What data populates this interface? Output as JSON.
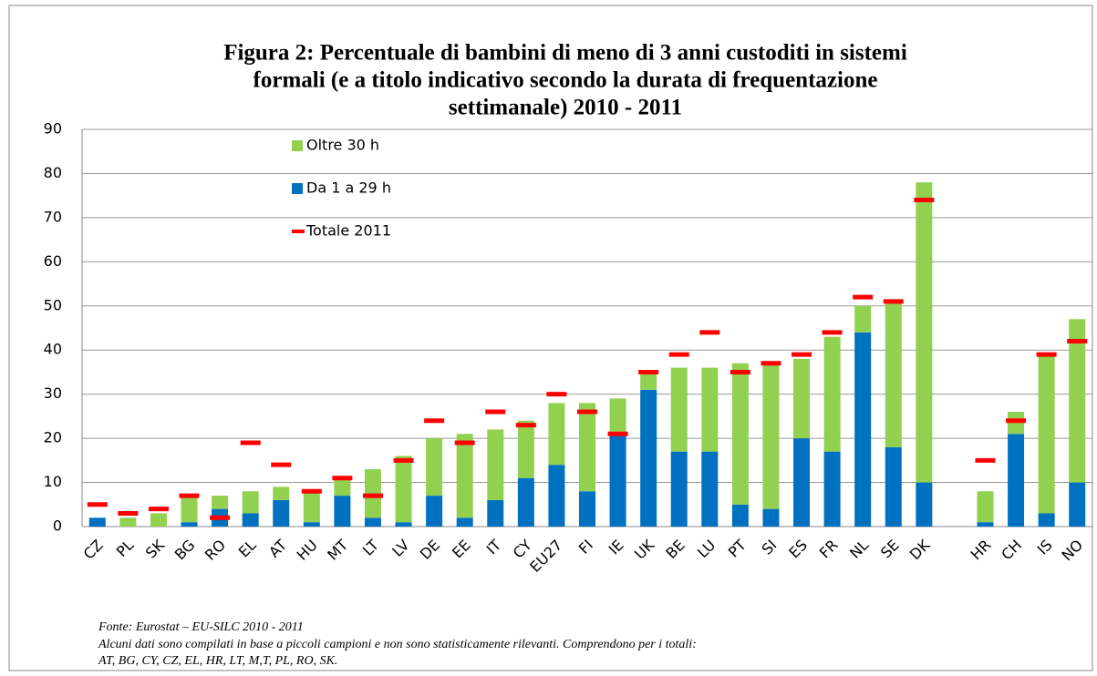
{
  "chart_data": {
    "type": "bar",
    "title": [
      "Figura 2: Percentuale di bambini di meno di 3 anni custoditi in sistemi",
      "formali (e a titolo indicativo secondo la durata di frequentazione",
      "settimanale) 2010 - 2011"
    ],
    "categories": [
      "CZ",
      "PL",
      "SK",
      "BG",
      "RO",
      "EL",
      "AT",
      "HU",
      "MT",
      "LT",
      "LV",
      "DE",
      "EE",
      "IT",
      "CY",
      "EU27",
      "FI",
      "IE",
      "UK",
      "BE",
      "LU",
      "PT",
      "SI",
      "ES",
      "FR",
      "NL",
      "SE",
      "DK",
      null,
      "HR",
      "CH",
      "IS",
      "NO"
    ],
    "series": [
      {
        "name": "Da 1 a 29 h",
        "color": "#0070c0",
        "stack": true,
        "values": [
          2,
          0,
          0,
          1,
          4,
          3,
          6,
          1,
          7,
          2,
          1,
          7,
          2,
          6,
          11,
          14,
          8,
          21,
          31,
          17,
          17,
          5,
          4,
          20,
          17,
          44,
          18,
          10,
          null,
          1,
          21,
          3,
          10
        ]
      },
      {
        "name": "Oltre 30 h",
        "color": "#92d050",
        "stack": true,
        "values": [
          0,
          2,
          3,
          6,
          3,
          5,
          3,
          7,
          4,
          11,
          15,
          13,
          19,
          16,
          13,
          14,
          20,
          8,
          4,
          19,
          19,
          32,
          33,
          18,
          26,
          6,
          33,
          68,
          null,
          7,
          5,
          36,
          37
        ]
      },
      {
        "name": "Totale 2011",
        "color": "#ff0000",
        "marker": "dash",
        "values": [
          5,
          3,
          4,
          7,
          2,
          19,
          14,
          8,
          11,
          7,
          15,
          24,
          19,
          26,
          23,
          30,
          26,
          21,
          35,
          39,
          44,
          35,
          37,
          39,
          44,
          52,
          51,
          74,
          null,
          15,
          24,
          39,
          42
        ]
      }
    ],
    "ylim": [
      0,
      90
    ],
    "yticks": [
      0,
      10,
      20,
      30,
      40,
      50,
      60,
      70,
      80,
      90
    ],
    "grid": true,
    "source": "Fonte: Eurostat – EU-SILC 2010 - 2011",
    "notes": [
      "Alcuni dati sono compilati in base a piccoli campioni e non sono statisticamente rilevanti. Comprendono per i totali:",
      "AT, BG, CY, CZ, EL, HR, LT, M,T, PL, RO, SK."
    ]
  }
}
